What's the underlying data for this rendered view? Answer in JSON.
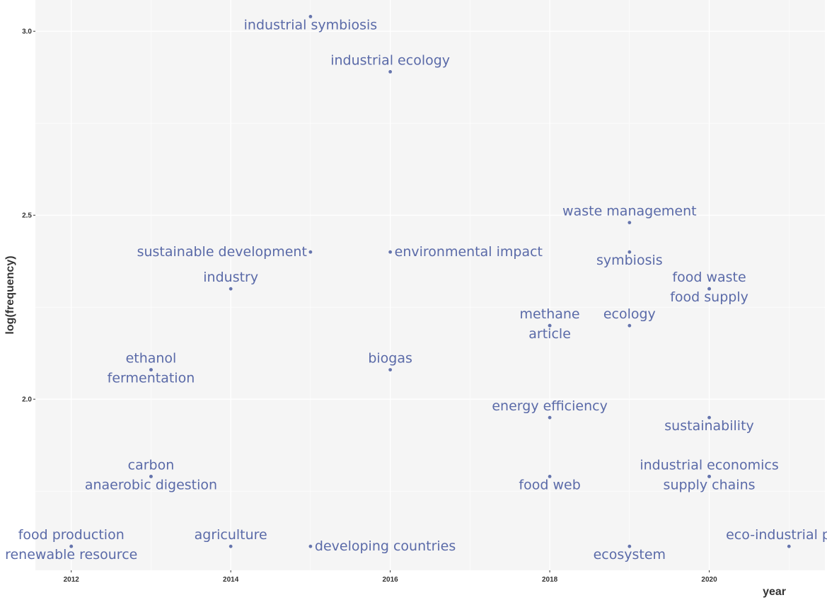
{
  "chart_data": {
    "type": "scatter",
    "xlabel": "year",
    "ylabel": "log(frequency)",
    "xlim": [
      2011.55,
      2021.45
    ],
    "ylim": [
      1.535,
      3.085
    ],
    "x_ticks": [
      2012,
      2014,
      2016,
      2018,
      2020
    ],
    "y_ticks": [
      2.0,
      2.5,
      3.0
    ],
    "y_tick_labels": [
      "2.0",
      "2.5",
      "3.0"
    ],
    "grid": true,
    "legend": "none",
    "colors": {
      "panel_background": "#f5f5f5",
      "grid_major": "#ffffff",
      "point": "#6675ad",
      "label": "#5a6aa8",
      "axis_text": "#333333"
    },
    "points": [
      {
        "x": 2015,
        "y": 3.04,
        "label": "industrial symbiosis",
        "label_anchor": "center",
        "label_side": "below"
      },
      {
        "x": 2016,
        "y": 2.89,
        "label": "industrial ecology",
        "label_anchor": "center",
        "label_side": "above"
      },
      {
        "x": 2019,
        "y": 2.48,
        "label": "waste management",
        "label_anchor": "center",
        "label_side": "above"
      },
      {
        "x": 2015,
        "y": 2.4,
        "label": "sustainable development",
        "label_anchor": "left",
        "label_side": "level"
      },
      {
        "x": 2016,
        "y": 2.4,
        "label": "environmental impact",
        "label_anchor": "right",
        "label_side": "level"
      },
      {
        "x": 2019,
        "y": 2.4,
        "label": "symbiosis",
        "label_anchor": "center",
        "label_side": "below"
      },
      {
        "x": 2014,
        "y": 2.3,
        "label": "industry",
        "label_anchor": "center",
        "label_side": "above"
      },
      {
        "x": 2020,
        "y": 2.3,
        "label": "food waste",
        "label_anchor": "center",
        "label_side": "above"
      },
      {
        "x": 2020,
        "y": 2.3,
        "label": "food supply",
        "label_anchor": "center",
        "label_side": "below"
      },
      {
        "x": 2018,
        "y": 2.2,
        "label": "methane",
        "label_anchor": "center",
        "label_side": "above"
      },
      {
        "x": 2018,
        "y": 2.2,
        "label": "article",
        "label_anchor": "center",
        "label_side": "below"
      },
      {
        "x": 2019,
        "y": 2.2,
        "label": "ecology",
        "label_anchor": "center",
        "label_side": "above"
      },
      {
        "x": 2013,
        "y": 2.08,
        "label": "ethanol",
        "label_anchor": "center",
        "label_side": "above"
      },
      {
        "x": 2013,
        "y": 2.08,
        "label": "fermentation",
        "label_anchor": "center",
        "label_side": "below"
      },
      {
        "x": 2016,
        "y": 2.08,
        "label": "biogas",
        "label_anchor": "center",
        "label_side": "above"
      },
      {
        "x": 2018,
        "y": 1.95,
        "label": "energy efficiency",
        "label_anchor": "center",
        "label_side": "above"
      },
      {
        "x": 2020,
        "y": 1.95,
        "label": "sustainability",
        "label_anchor": "center",
        "label_side": "below"
      },
      {
        "x": 2013,
        "y": 1.79,
        "label": "carbon",
        "label_anchor": "center",
        "label_side": "above"
      },
      {
        "x": 2013,
        "y": 1.79,
        "label": "anaerobic digestion",
        "label_anchor": "center",
        "label_side": "below"
      },
      {
        "x": 2018,
        "y": 1.79,
        "label": "food web",
        "label_anchor": "center",
        "label_side": "below"
      },
      {
        "x": 2020,
        "y": 1.79,
        "label": "industrial economics",
        "label_anchor": "center",
        "label_side": "above"
      },
      {
        "x": 2020,
        "y": 1.79,
        "label": "supply chains",
        "label_anchor": "center",
        "label_side": "below"
      },
      {
        "x": 2012,
        "y": 1.6,
        "label": "food production",
        "label_anchor": "center",
        "label_side": "above"
      },
      {
        "x": 2012,
        "y": 1.6,
        "label": "renewable resource",
        "label_anchor": "center",
        "label_side": "below"
      },
      {
        "x": 2014,
        "y": 1.6,
        "label": "agriculture",
        "label_anchor": "center",
        "label_side": "above"
      },
      {
        "x": 2015,
        "y": 1.6,
        "label": "developing countries",
        "label_anchor": "right",
        "label_side": "level"
      },
      {
        "x": 2019,
        "y": 1.6,
        "label": "ecosystem",
        "label_anchor": "center",
        "label_side": "below"
      },
      {
        "x": 2021,
        "y": 1.6,
        "label": "eco-industrial park",
        "label_anchor": "center",
        "label_side": "above"
      }
    ]
  }
}
